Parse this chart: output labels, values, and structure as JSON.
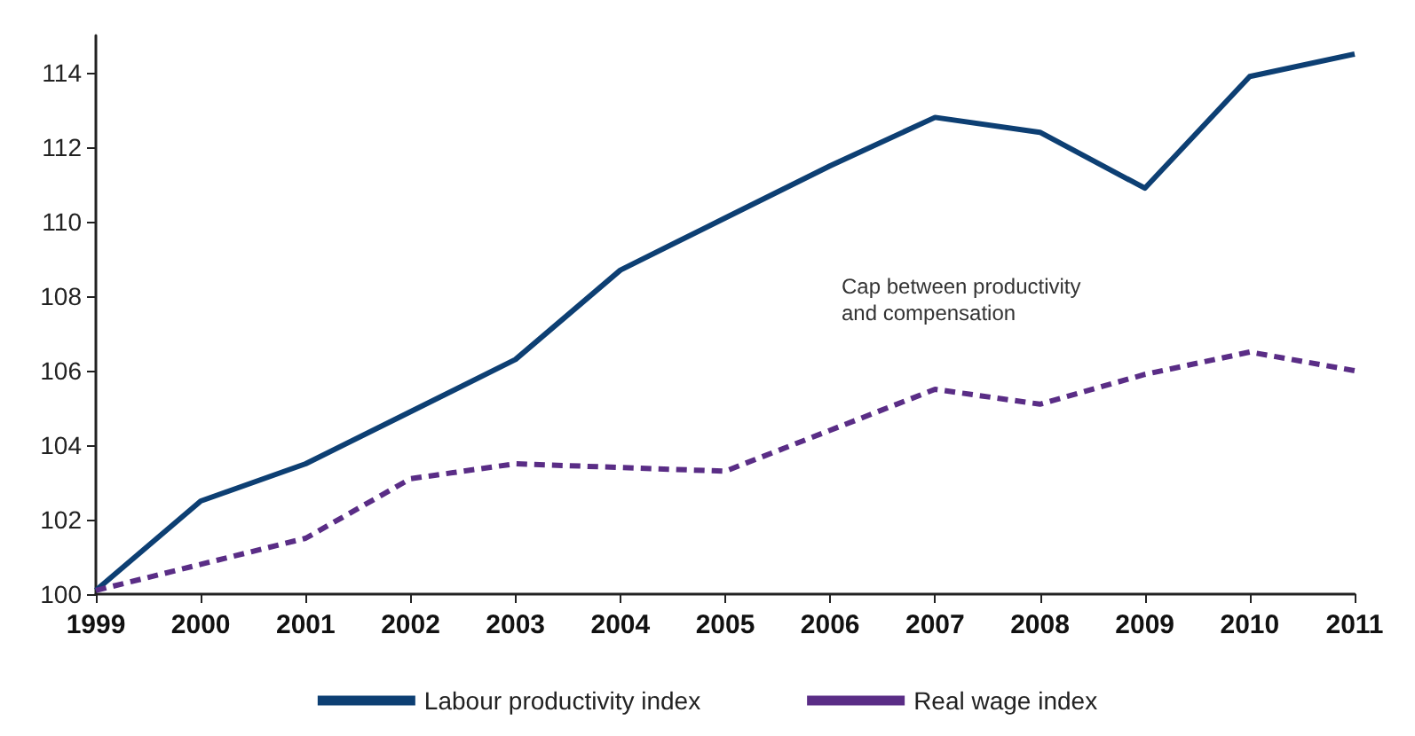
{
  "chart_data": {
    "type": "line",
    "categories": [
      "1999",
      "2000",
      "2001",
      "2002",
      "2003",
      "2004",
      "2005",
      "2006",
      "2007",
      "2008",
      "2009",
      "2010",
      "2011"
    ],
    "series": [
      {
        "name": "Labour productivity index",
        "color": "#0d3f73",
        "line_style": "solid",
        "values": [
          100.1,
          102.5,
          103.5,
          104.9,
          106.3,
          108.7,
          110.1,
          111.5,
          112.8,
          112.4,
          110.9,
          113.9,
          114.5
        ]
      },
      {
        "name": "Real wage index",
        "color": "#5a2d86",
        "line_style": "dashed",
        "values": [
          100.1,
          100.8,
          101.5,
          103.1,
          103.5,
          103.4,
          103.3,
          104.4,
          105.5,
          105.1,
          105.9,
          106.5,
          106.0
        ]
      }
    ],
    "ylim": [
      100,
      115
    ],
    "yticks": [
      100,
      102,
      104,
      106,
      108,
      110,
      112,
      114
    ],
    "annotations": [
      "Cap between productivity\nand compensation"
    ],
    "grid": false,
    "legend": "bottom",
    "marker": "none"
  }
}
